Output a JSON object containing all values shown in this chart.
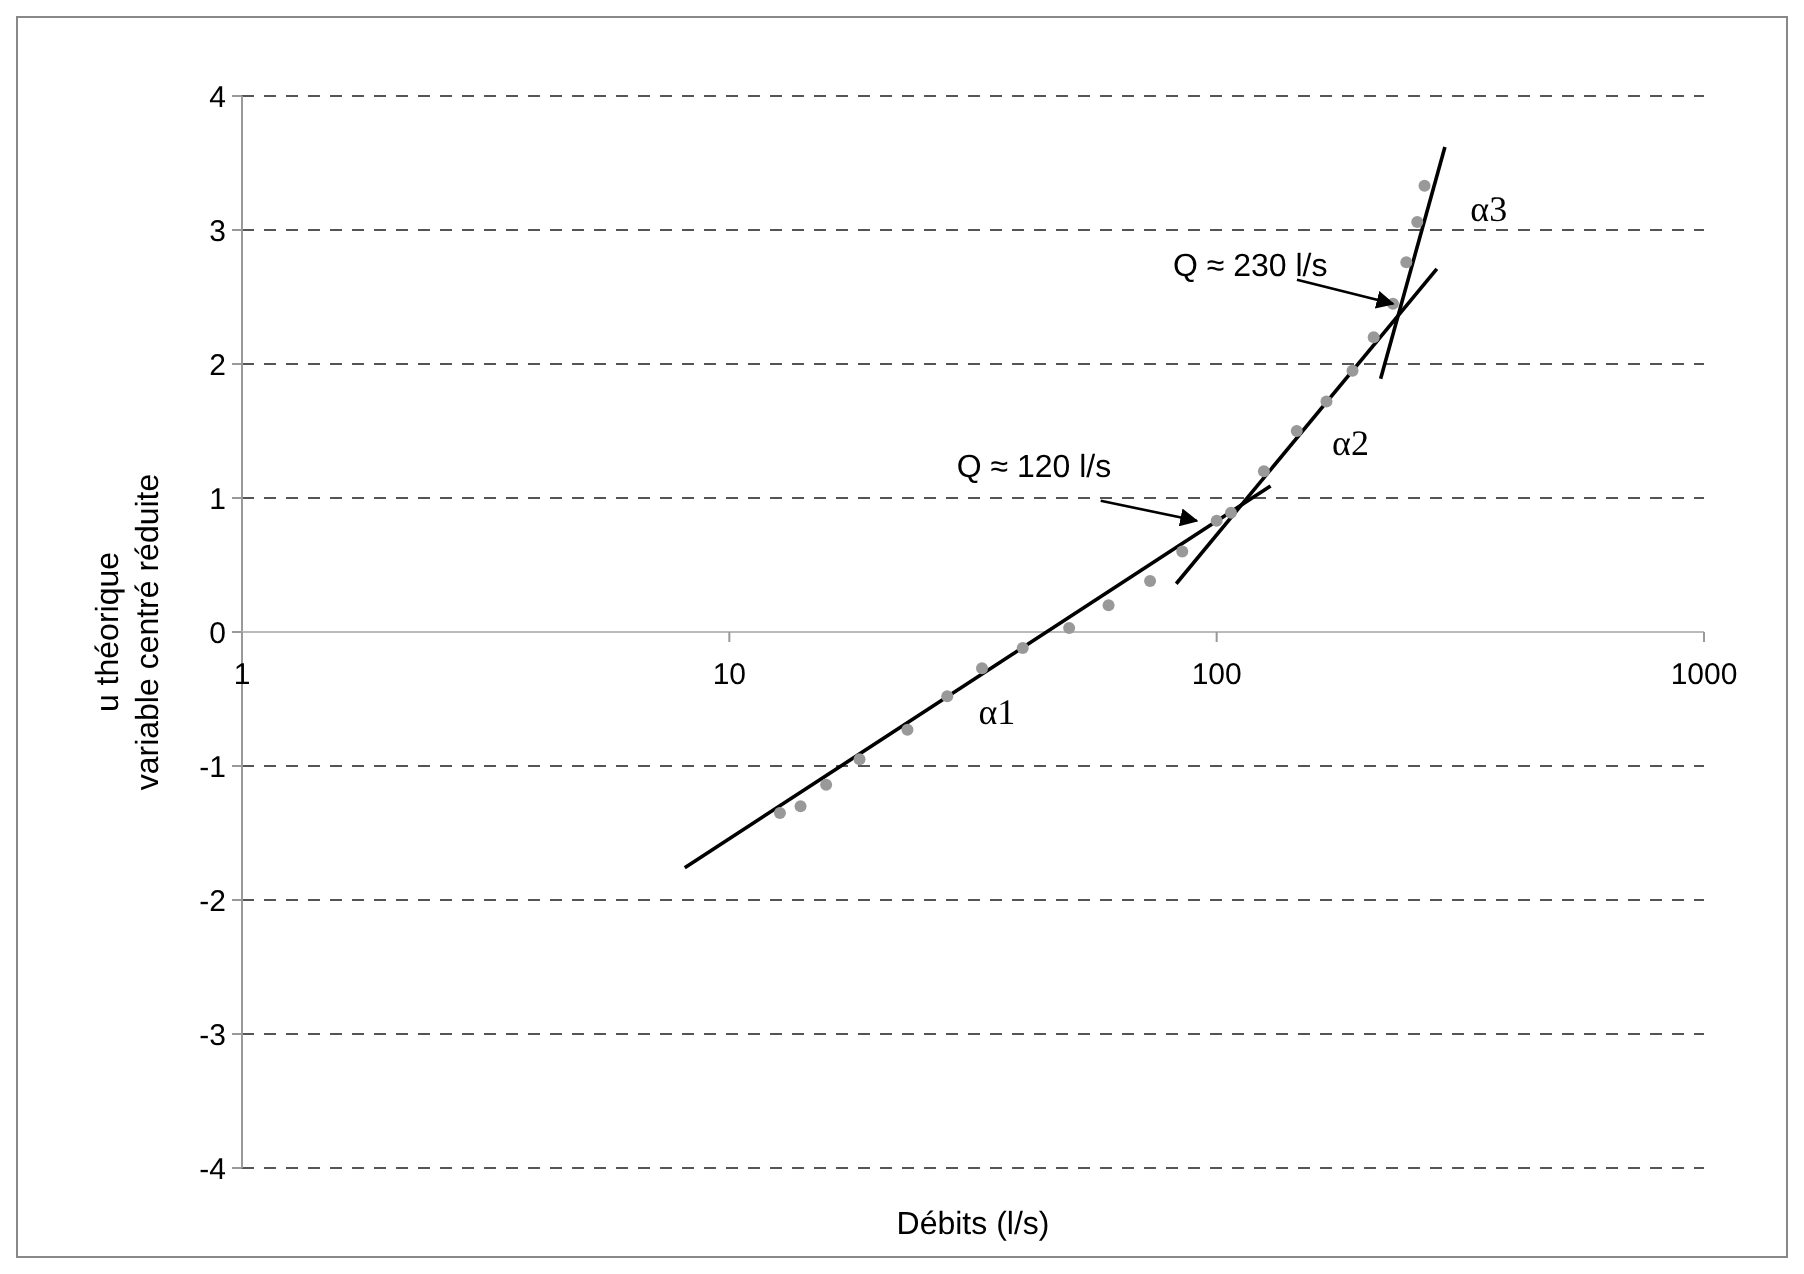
{
  "chart_data": {
    "type": "scatter",
    "xlabel": "Débits (l/s)",
    "ylabel": "u théorique\nvariable centré réduite",
    "log": "x",
    "xlim": [
      1,
      1000
    ],
    "xticks": [
      1,
      10,
      100,
      1000
    ],
    "ylim": [
      -4,
      4
    ],
    "yticks": [
      -4,
      -3,
      -2,
      -1,
      0,
      1,
      2,
      3,
      4
    ],
    "grid": "y",
    "series": [
      {
        "color": "#999999",
        "marker": "circle",
        "x": [
          12.7,
          14,
          15.8,
          18.5,
          23.2,
          28,
          33,
          40,
          49.8,
          60,
          73,
          85,
          100,
          107,
          125,
          146,
          168,
          190,
          210,
          230,
          245,
          258,
          267
        ],
        "values": [
          -1.35,
          -1.3,
          -1.14,
          -0.95,
          -0.73,
          -0.48,
          -0.27,
          -0.12,
          0.03,
          0.2,
          0.38,
          0.6,
          0.83,
          0.89,
          1.2,
          1.5,
          1.72,
          1.95,
          2.2,
          2.45,
          2.76,
          3.06,
          3.33
        ]
      },
      {
        "type": "line",
        "name": "α1",
        "color": "#000000",
        "marker": "none",
        "line_style": "solid",
        "x": [
          8.1,
          129
        ],
        "values": [
          -1.76,
          1.09
        ]
      },
      {
        "type": "line",
        "name": "α2",
        "color": "#000000",
        "marker": "none",
        "line_style": "solid",
        "x": [
          82.6,
          283
        ],
        "values": [
          0.36,
          2.71
        ]
      },
      {
        "type": "line",
        "name": "α3",
        "color": "#000000",
        "marker": "none",
        "line_style": "solid",
        "x": [
          217,
          294
        ],
        "values": [
          1.89,
          3.62
        ]
      }
    ],
    "annotations": [
      {
        "text": "Q ≈ 120 l/s",
        "x": 91,
        "y": 0.83
      },
      {
        "text": "Q ≈ 230 l/s",
        "x": 230,
        "y": 2.45
      }
    ]
  }
}
